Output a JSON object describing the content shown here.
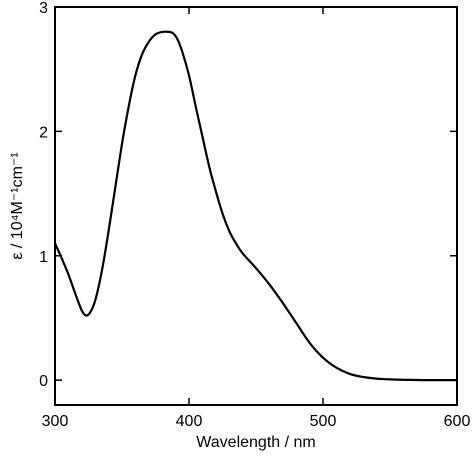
{
  "chart_data": {
    "type": "line",
    "title": "",
    "xlabel": "Wavelength / nm",
    "ylabel": "ε / 10⁴M⁻¹cm⁻¹",
    "xlim": [
      300,
      600
    ],
    "ylim": [
      -0.2,
      3.0
    ],
    "xticks": [
      300,
      400,
      500,
      600
    ],
    "yticks": [
      0,
      1,
      2,
      3
    ],
    "grid": false,
    "legend": "none",
    "line_color": "#000000",
    "series": [
      {
        "x": [
          300,
          305,
          310,
          315,
          320,
          323,
          326,
          330,
          335,
          340,
          345,
          350,
          355,
          360,
          365,
          370,
          375,
          380,
          385,
          388,
          391,
          395,
          400,
          405,
          410,
          415,
          420,
          425,
          430,
          435,
          440,
          450,
          460,
          470,
          480,
          490,
          500,
          510,
          520,
          530,
          540,
          550,
          560,
          570,
          580,
          590,
          600
        ],
        "y": [
          1.1,
          0.98,
          0.85,
          0.7,
          0.56,
          0.52,
          0.54,
          0.64,
          0.88,
          1.2,
          1.55,
          1.9,
          2.2,
          2.45,
          2.62,
          2.72,
          2.78,
          2.8,
          2.8,
          2.79,
          2.75,
          2.64,
          2.45,
          2.2,
          1.96,
          1.72,
          1.52,
          1.34,
          1.2,
          1.1,
          1.02,
          0.9,
          0.77,
          0.62,
          0.46,
          0.3,
          0.18,
          0.1,
          0.05,
          0.025,
          0.012,
          0.006,
          0.003,
          0.001,
          0.0,
          0.0,
          0.0
        ]
      }
    ]
  }
}
